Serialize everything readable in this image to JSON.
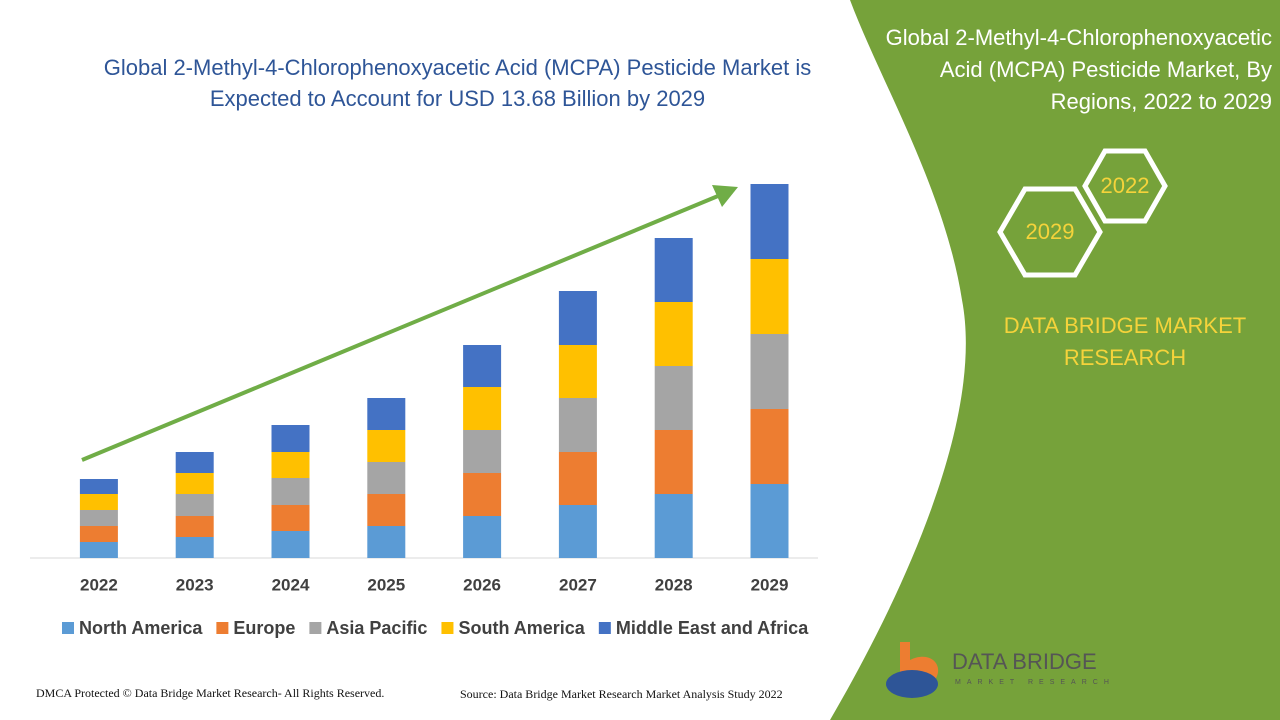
{
  "chart_data": {
    "type": "bar",
    "stacked": true,
    "title": "Global 2-Methyl-4-Chlorophenoxyacetic Acid (MCPA) Pesticide Market is Expected to Account for USD 13.68 Billion by 2029",
    "categories": [
      "2022",
      "2023",
      "2024",
      "2025",
      "2026",
      "2027",
      "2028",
      "2029"
    ],
    "series": [
      {
        "name": "North America",
        "color": "#5b9bd5",
        "values": [
          16,
          21,
          27,
          32,
          42,
          53,
          64,
          74
        ]
      },
      {
        "name": "Europe",
        "color": "#ed7d31",
        "values": [
          16,
          21,
          26,
          32,
          43,
          53,
          64,
          75
        ]
      },
      {
        "name": "Asia Pacific",
        "color": "#a5a5a5",
        "values": [
          16,
          22,
          27,
          32,
          43,
          54,
          64,
          75
        ]
      },
      {
        "name": "South America",
        "color": "#ffc000",
        "values": [
          16,
          21,
          26,
          32,
          43,
          53,
          64,
          75
        ]
      },
      {
        "name": "Middle East and Africa",
        "color": "#4472c4",
        "values": [
          15,
          21,
          27,
          32,
          42,
          54,
          64,
          75
        ]
      }
    ],
    "legend": "bottom"
  },
  "panel": {
    "title": "Global 2-Methyl-4-Chlorophenoxyacetic Acid (MCPA) Pesticide Market, By Regions, 2022 to 2029",
    "hex_start": "2022",
    "hex_end": "2029",
    "brand": "DATA BRIDGE MARKET RESEARCH",
    "logo_name": "DATA BRIDGE",
    "logo_sub": "MARKET RESEARCH"
  },
  "footer": {
    "copyright": "DMCA Protected © Data Bridge Market Research- All Rights Reserved.",
    "source": "Source: Data Bridge Market Research Market Analysis Study 2022"
  }
}
